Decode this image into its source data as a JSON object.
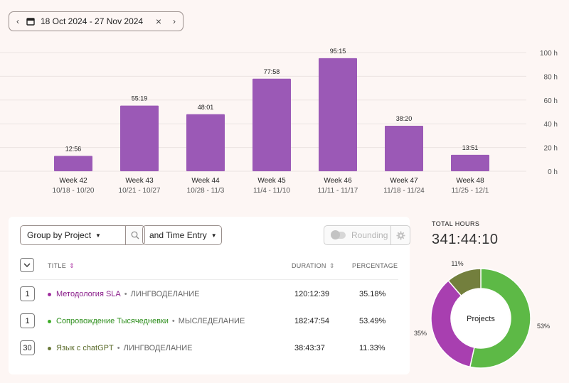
{
  "date_range": {
    "label": "18 Oct 2024 - 27 Nov 2024",
    "prev_icon": "chevron-left-icon",
    "next_icon": "chevron-right-icon",
    "clear_icon": "close-icon"
  },
  "chart_data": {
    "type": "bar",
    "categories": [
      "Week 42",
      "Week 43",
      "Week 44",
      "Week 45",
      "Week 46",
      "Week 47",
      "Week 48"
    ],
    "ranges": [
      "10/18 - 10/20",
      "10/21 - 10/27",
      "10/28 - 11/3",
      "11/4 - 11/10",
      "11/11 - 11/17",
      "11/18 - 11/24",
      "11/25 - 12/1"
    ],
    "values": [
      12.93,
      55.32,
      48.02,
      77.97,
      95.25,
      38.33,
      13.85
    ],
    "value_labels": [
      "12:56",
      "55:19",
      "48:01",
      "77:58",
      "95:15",
      "38:20",
      "13:51"
    ],
    "y_ticks": [
      "100 h",
      "80 h",
      "60 h",
      "40 h",
      "20 h",
      "0 h"
    ],
    "ylim": [
      0,
      100
    ],
    "bar_color": "#9b59b6",
    "grid": true
  },
  "toolbar": {
    "group_label": "Group by Project",
    "entry_label": "and Time Entry",
    "rounding_label": "Rounding"
  },
  "table": {
    "headers": {
      "title": "TITLE",
      "duration": "DURATION",
      "percentage": "PERCENTAGE"
    },
    "rows": [
      {
        "count": "1",
        "project": "Методология SLA",
        "client": "ЛИНГВОДЕЛАНИЕ",
        "duration": "120:12:39",
        "percentage": "35.18%",
        "color": "#a12fa0"
      },
      {
        "count": "1",
        "project": "Сопровождение Тысячедневки",
        "client": "МЫСЛЕДЕЛАНИЕ",
        "duration": "182:47:54",
        "percentage": "53.49%",
        "color": "#3fae2a"
      },
      {
        "count": "30",
        "project": "Язык с chatGPT",
        "client": "ЛИНГВОДЕЛАНИЕ",
        "duration": "38:43:37",
        "percentage": "11.33%",
        "color": "#6b7a3a"
      }
    ]
  },
  "totals": {
    "label": "TOTAL HOURS",
    "value": "341:44:10"
  },
  "donut": {
    "center_label": "Projects",
    "slices": [
      {
        "value": 53.49,
        "label": "53%",
        "color": "#5db946"
      },
      {
        "value": 35.18,
        "label": "35%",
        "color": "#a83fb0"
      },
      {
        "value": 11.33,
        "label": "11%",
        "color": "#737f3d"
      }
    ]
  }
}
